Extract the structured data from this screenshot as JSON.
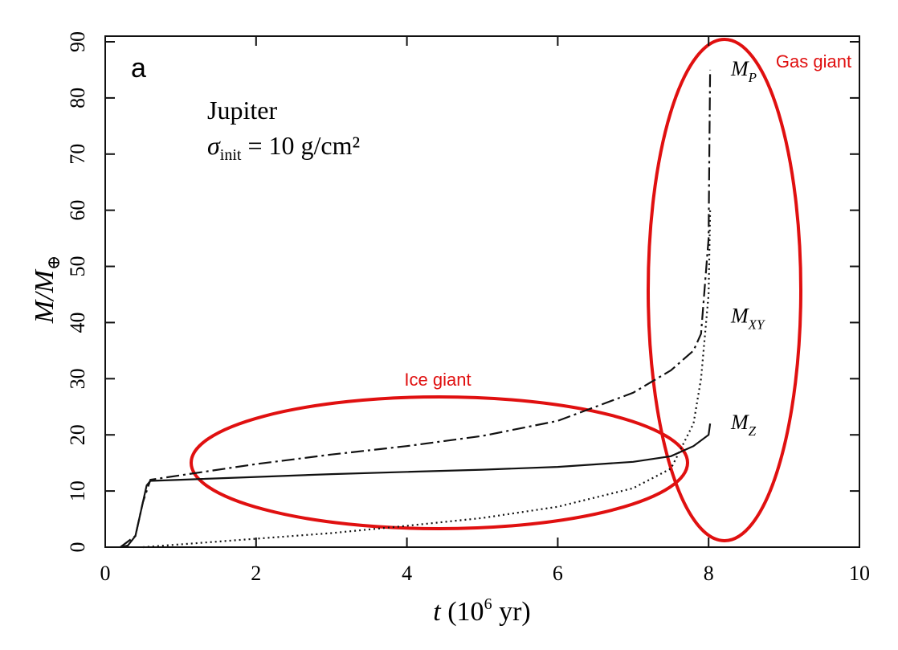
{
  "chart_data": {
    "type": "line",
    "panel_label": "a",
    "planet": "Jupiter",
    "sigma": {
      "symbol": "σ",
      "sub": "init",
      "rest": " = 10 g/cm²"
    },
    "x_label": {
      "pre": "t",
      "mid": " (10",
      "sup": "6",
      "post": " yr)"
    },
    "y_label": {
      "main": "M/M",
      "sub": "⊕"
    },
    "xlim": [
      0,
      10
    ],
    "xticks": [
      0,
      2,
      4,
      6,
      8,
      10
    ],
    "ylim": [
      0,
      90
    ],
    "yticks": [
      0,
      10,
      20,
      30,
      40,
      50,
      60,
      70,
      80,
      90
    ],
    "series": [
      {
        "name": "M",
        "name_sub": "P",
        "color": "#111111",
        "style": "dashdot",
        "x": [
          0.2,
          0.4,
          0.5,
          0.6,
          1,
          2,
          3,
          4,
          5,
          6,
          7,
          7.5,
          7.8,
          7.9,
          8.0,
          8.01,
          8.02
        ],
        "values": [
          0,
          2,
          8,
          12,
          12.8,
          14.8,
          16.5,
          18,
          19.8,
          22.5,
          27.5,
          31.5,
          35,
          38,
          55,
          70,
          85
        ]
      },
      {
        "name": "M",
        "name_sub": "XY",
        "color": "#111111",
        "style": "dotted",
        "x": [
          0.5,
          1,
          2,
          3,
          4,
          5,
          6,
          7,
          7.5,
          7.8,
          7.9,
          8.0,
          8.02
        ],
        "values": [
          0,
          0.5,
          1.5,
          2.5,
          3.8,
          5.2,
          7.2,
          10.5,
          14,
          22,
          30,
          45,
          60
        ]
      },
      {
        "name": "M",
        "name_sub": "Z",
        "color": "#111111",
        "style": "solid",
        "x": [
          0.2,
          0.3,
          0.4,
          0.5,
          0.55,
          0.6,
          1,
          2,
          3,
          4,
          5,
          6,
          7,
          7.5,
          7.8,
          8.0,
          8.02
        ],
        "values": [
          0,
          0.3,
          2,
          8,
          11,
          11.8,
          12,
          12.5,
          13,
          13.4,
          13.8,
          14.3,
          15.2,
          16.2,
          18,
          20,
          22
        ]
      }
    ],
    "highlights": [
      {
        "label": "Ice giant",
        "color": "#e01010"
      },
      {
        "label": "Gas giant",
        "color": "#e01010"
      }
    ]
  }
}
